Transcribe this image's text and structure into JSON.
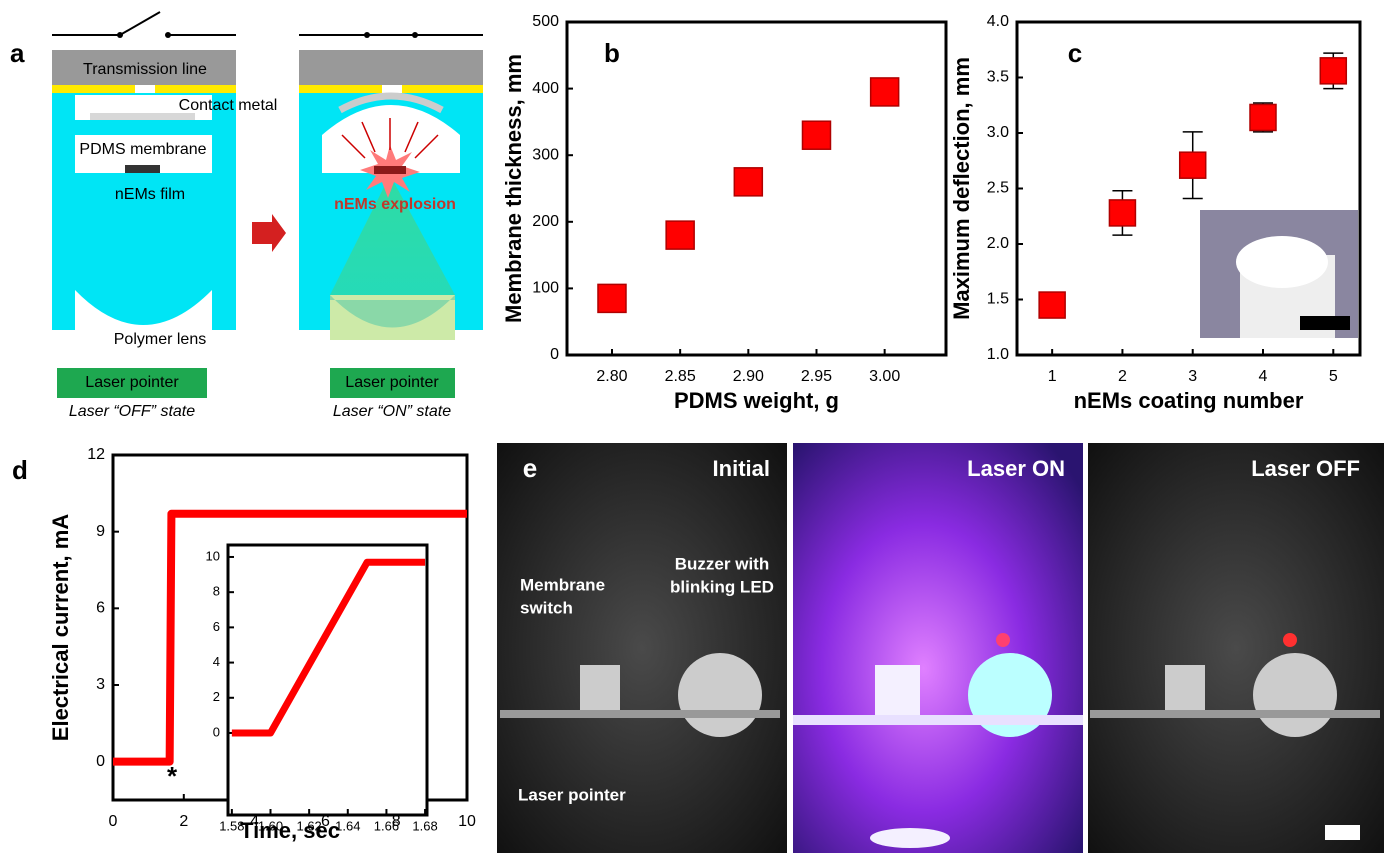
{
  "chart_data": [
    {
      "type": "scatter",
      "panel_label": "b",
      "xlabel": "PDMS weight, g",
      "ylabel": "Membrane thickness, mm",
      "x": [
        2.8,
        2.85,
        2.9,
        2.95,
        3.0
      ],
      "series": [
        {
          "color": "#ff0000",
          "values": [
            85,
            180,
            260,
            330,
            395
          ]
        }
      ],
      "xlim": [
        2.767,
        3.045
      ],
      "ylim": [
        0,
        500
      ],
      "xticks": [
        {
          "value": 2.8,
          "label": "2.80"
        },
        {
          "value": 2.85,
          "label": "2.85"
        },
        {
          "value": 2.9,
          "label": "2.90"
        },
        {
          "value": 2.95,
          "label": "2.95"
        },
        {
          "value": 3.0,
          "label": "3.00"
        }
      ],
      "yticks": [
        0,
        100,
        200,
        300,
        400,
        500
      ]
    },
    {
      "type": "scatter",
      "panel_label": "c",
      "xlabel": "nEMs coating number",
      "ylabel": "Maximum deflection, mm",
      "x": [
        1,
        2,
        3,
        4,
        5
      ],
      "series": [
        {
          "color": "#ff0000",
          "values": [
            1.45,
            2.28,
            2.71,
            3.14,
            3.56
          ],
          "errors": [
            0.09,
            0.2,
            0.3,
            0.13,
            0.16
          ]
        }
      ],
      "xlim": [
        0.5,
        5.38
      ],
      "ylim": [
        1.0,
        4.0
      ],
      "xticks": [
        1,
        2,
        3,
        4,
        5
      ],
      "yticks": [
        {
          "value": 1.0,
          "label": "1.0"
        },
        {
          "value": 1.5,
          "label": "1.5"
        },
        {
          "value": 2.0,
          "label": "2.0"
        },
        {
          "value": 2.5,
          "label": "2.5"
        },
        {
          "value": 3.0,
          "label": "3.0"
        },
        {
          "value": 3.5,
          "label": "3.5"
        },
        {
          "value": 4.0,
          "label": "4.0"
        }
      ]
    },
    {
      "type": "line",
      "panel_label": "d",
      "xlabel": "Time, sec",
      "ylabel": "Electrical current, mA",
      "annotation": "*",
      "x": [
        0,
        1.6,
        1.65,
        10
      ],
      "series": [
        {
          "color": "#ff0000",
          "values": [
            0,
            0,
            9.7,
            9.7
          ]
        }
      ],
      "xlim": [
        0,
        10
      ],
      "ylim": [
        -1.5,
        12
      ],
      "xticks": [
        0,
        2,
        4,
        6,
        8,
        10
      ],
      "yticks": [
        0,
        3,
        6,
        9,
        12
      ]
    },
    {
      "type": "line",
      "x": [
        1.58,
        1.6,
        1.65,
        1.68
      ],
      "series": [
        {
          "color": "#ff0000",
          "values": [
            0,
            0,
            9.7,
            9.7
          ]
        }
      ],
      "xlim": [
        1.578,
        1.681
      ],
      "ylim": [
        -4.66,
        10.68
      ],
      "xticks": [
        {
          "value": 1.58,
          "label": "1.58"
        },
        {
          "value": 1.6,
          "label": "1.60"
        },
        {
          "value": 1.62,
          "label": "1.62"
        },
        {
          "value": 1.64,
          "label": "1.64"
        },
        {
          "value": 1.66,
          "label": "1.66"
        },
        {
          "value": 1.68,
          "label": "1.68"
        }
      ],
      "yticks": [
        0,
        2,
        4,
        6,
        8,
        10
      ]
    }
  ],
  "diagram": {
    "panel_label": "a",
    "transmission_line": "Transmission line",
    "contact_metal": "Contact metal",
    "membrane": "PDMS membrane",
    "film": "nEMs film",
    "lens": "Polymer lens",
    "laser_left": "Laser pointer",
    "state_off": "Laser “OFF” state",
    "explosion": "nEMs explosion",
    "laser_right": "Laser pointer",
    "state_on": "Laser “ON” state"
  },
  "photos": {
    "panel_label": "e",
    "titles": [
      "Initial",
      "Laser ON",
      "Laser OFF"
    ],
    "buzzer": [
      "Buzzer with",
      "blinking LED"
    ],
    "switch": [
      "Membrane",
      "switch"
    ],
    "pointer": "Laser pointer"
  }
}
